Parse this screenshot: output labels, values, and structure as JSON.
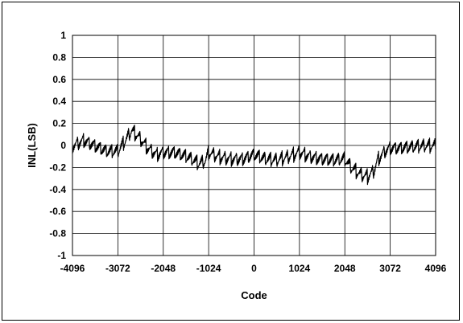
{
  "chart_data": {
    "type": "line",
    "title": "",
    "xlabel": "Code",
    "ylabel": "INL(LSB)",
    "xlim": [
      -4096,
      4096
    ],
    "ylim": [
      -1,
      1
    ],
    "x_ticks": [
      -4096,
      -3072,
      -2048,
      -1024,
      0,
      1024,
      2048,
      3072,
      4096
    ],
    "x_tick_labels": [
      "-4096",
      "-3072",
      "-2048",
      "-1024",
      "0",
      "1024",
      "2048",
      "3072",
      "4096"
    ],
    "y_ticks": [
      1,
      0.8,
      0.6,
      0.4,
      0.2,
      0,
      -0.2,
      -0.4,
      -0.6,
      -0.8,
      -1
    ],
    "y_tick_labels": [
      "1",
      "0.8",
      "0.6",
      "0.4",
      "0.2",
      "0",
      "-0.2",
      "-0.4",
      "-0.6",
      "-0.8",
      "-1"
    ],
    "grid": true,
    "legend": "none",
    "line_color": "#000000",
    "series": [
      {
        "x": [
          -4096,
          -3840,
          -3584,
          -3328,
          -3072,
          -2900,
          -2760,
          -2600,
          -2400,
          -2200,
          -2048,
          -1800,
          -1500,
          -1250,
          -1100,
          -1024,
          -800,
          -512,
          -256,
          0,
          256,
          512,
          768,
          1024,
          1280,
          1536,
          1800,
          2048,
          2200,
          2400,
          2560,
          2700,
          2800,
          2950,
          3072,
          3300,
          3584,
          3840,
          4096
        ],
        "y": [
          0.0,
          0.05,
          0.0,
          -0.05,
          -0.05,
          0.05,
          0.14,
          0.08,
          -0.02,
          -0.08,
          -0.06,
          -0.06,
          -0.1,
          -0.16,
          -0.14,
          -0.06,
          -0.1,
          -0.12,
          -0.12,
          -0.08,
          -0.12,
          -0.13,
          -0.1,
          -0.06,
          -0.1,
          -0.12,
          -0.13,
          -0.12,
          -0.2,
          -0.26,
          -0.28,
          -0.23,
          -0.12,
          -0.05,
          -0.02,
          -0.02,
          -0.01,
          0.0,
          0.0
        ]
      }
    ]
  }
}
